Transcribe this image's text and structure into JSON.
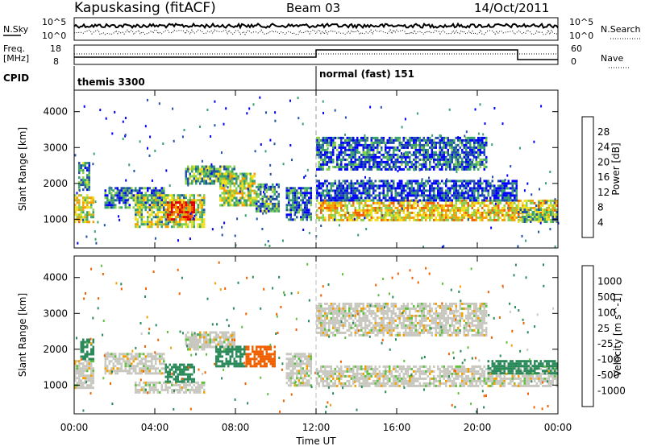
{
  "header": {
    "station": "Kapuskasing (fitACF)",
    "beam": "Beam 03",
    "date": "14/Oct/2011"
  },
  "summary": {
    "nsky_label": "N.Sky",
    "nsky_ticks": [
      "10^5",
      "10^0"
    ],
    "nsky_ticks_right": [
      "10^5",
      "10^0"
    ],
    "nsearch_label": "N.Search",
    "freq_label_line1": "Freq.",
    "freq_label_line2": "[MHz]",
    "freq_ticks": [
      "18",
      "8"
    ],
    "nave_ticks": [
      "60",
      "0"
    ],
    "nave_label": "Nave",
    "cpid_label": "CPID",
    "cpid_segments": [
      {
        "name": "themis 3300",
        "start_hour": 0,
        "end_hour": 12
      },
      {
        "name": "normal (fast) 151",
        "start_hour": 12,
        "end_hour": 24
      }
    ]
  },
  "x_axis": {
    "label": "Time UT",
    "ticks": [
      "00:00",
      "04:00",
      "08:00",
      "12:00",
      "16:00",
      "20:00",
      "00:00"
    ]
  },
  "chart_data": [
    {
      "type": "heatmap",
      "name": "power",
      "ylabel": "Slant Range [km]",
      "y_ticks": [
        "1000",
        "2000",
        "3000",
        "4000"
      ],
      "xlim": [
        0,
        24
      ],
      "ylim": [
        200,
        4600
      ],
      "colorbar_label": "Power [dB]",
      "colorbar_ticks": [
        "28",
        "24",
        "20",
        "16",
        "12",
        "8",
        "4"
      ],
      "colorbar_colors": [
        "#0000ff",
        "#224fa8",
        "#3aa06e",
        "#88d050",
        "#f0e020",
        "#f4a000",
        "#f06000",
        "#e00000"
      ],
      "regions": [
        {
          "t0": 0.0,
          "t1": 1.0,
          "r0": 900,
          "r1": 1700,
          "level": 0.55
        },
        {
          "t0": 0.2,
          "t1": 0.8,
          "r0": 1800,
          "r1": 2600,
          "level": 0.3
        },
        {
          "t0": 1.5,
          "t1": 4.5,
          "r0": 1300,
          "r1": 1900,
          "level": 0.25
        },
        {
          "t0": 3.0,
          "t1": 6.5,
          "r0": 800,
          "r1": 1700,
          "level": 0.45
        },
        {
          "t0": 4.5,
          "t1": 6.0,
          "r0": 1000,
          "r1": 1500,
          "level": 0.85
        },
        {
          "t0": 5.5,
          "t1": 8.0,
          "r0": 2000,
          "r1": 2500,
          "level": 0.35
        },
        {
          "t0": 7.2,
          "t1": 9.0,
          "r0": 1400,
          "r1": 2300,
          "level": 0.5
        },
        {
          "t0": 9.0,
          "t1": 10.2,
          "r0": 1200,
          "r1": 2000,
          "level": 0.3
        },
        {
          "t0": 10.5,
          "t1": 11.8,
          "r0": 1000,
          "r1": 1900,
          "level": 0.25
        },
        {
          "t0": 12.0,
          "t1": 24.0,
          "r0": 1000,
          "r1": 1550,
          "level": 0.6
        },
        {
          "t0": 12.0,
          "t1": 20.5,
          "r0": 2400,
          "r1": 3300,
          "level": 0.2
        },
        {
          "t0": 12.0,
          "t1": 22.0,
          "r0": 1550,
          "r1": 2100,
          "level": 0.15
        },
        {
          "t0": 22.0,
          "t1": 24.0,
          "r0": 900,
          "r1": 1300,
          "level": 0.35
        }
      ]
    },
    {
      "type": "heatmap",
      "name": "velocity",
      "ylabel": "Slant Range [km]",
      "y_ticks": [
        "1000",
        "2000",
        "3000",
        "4000"
      ],
      "xlim": [
        0,
        24
      ],
      "ylim": [
        200,
        4600
      ],
      "colorbar_label": "Velocity [m s^-1]",
      "colorbar_ticks": [
        "1000",
        "500",
        "100",
        "25",
        "-25",
        "-100",
        "-500",
        "-1000"
      ],
      "colorbar_colors": [
        "#e00000",
        "#f06000",
        "#f4a000",
        "#c8c8c0",
        "#c8c8c0",
        "#60c040",
        "#2a8a5a",
        "#1838c0"
      ],
      "regions": [
        {
          "t0": 0.0,
          "t1": 1.0,
          "r0": 900,
          "r1": 1700,
          "v": 0
        },
        {
          "t0": 0.3,
          "t1": 1.0,
          "r0": 1700,
          "r1": 2300,
          "v": -200
        },
        {
          "t0": 1.5,
          "t1": 4.5,
          "r0": 1300,
          "r1": 1900,
          "v": 0
        },
        {
          "t0": 3.0,
          "t1": 6.5,
          "r0": 800,
          "r1": 1100,
          "v": 0
        },
        {
          "t0": 4.5,
          "t1": 6.0,
          "r0": 1100,
          "r1": 1600,
          "v": -400
        },
        {
          "t0": 5.5,
          "t1": 8.0,
          "r0": 2000,
          "r1": 2500,
          "v": 0
        },
        {
          "t0": 7.0,
          "t1": 8.5,
          "r0": 1500,
          "r1": 2100,
          "v": -300
        },
        {
          "t0": 8.5,
          "t1": 10.0,
          "r0": 1500,
          "r1": 2100,
          "v": 200
        },
        {
          "t0": 10.5,
          "t1": 11.8,
          "r0": 1000,
          "r1": 1900,
          "v": 0
        },
        {
          "t0": 12.0,
          "t1": 24.0,
          "r0": 1000,
          "r1": 1550,
          "v": 0
        },
        {
          "t0": 12.0,
          "t1": 20.5,
          "r0": 2400,
          "r1": 3300,
          "v": 0
        },
        {
          "t0": 20.5,
          "t1": 24.0,
          "r0": 1300,
          "r1": 1700,
          "v": -150
        }
      ]
    }
  ]
}
